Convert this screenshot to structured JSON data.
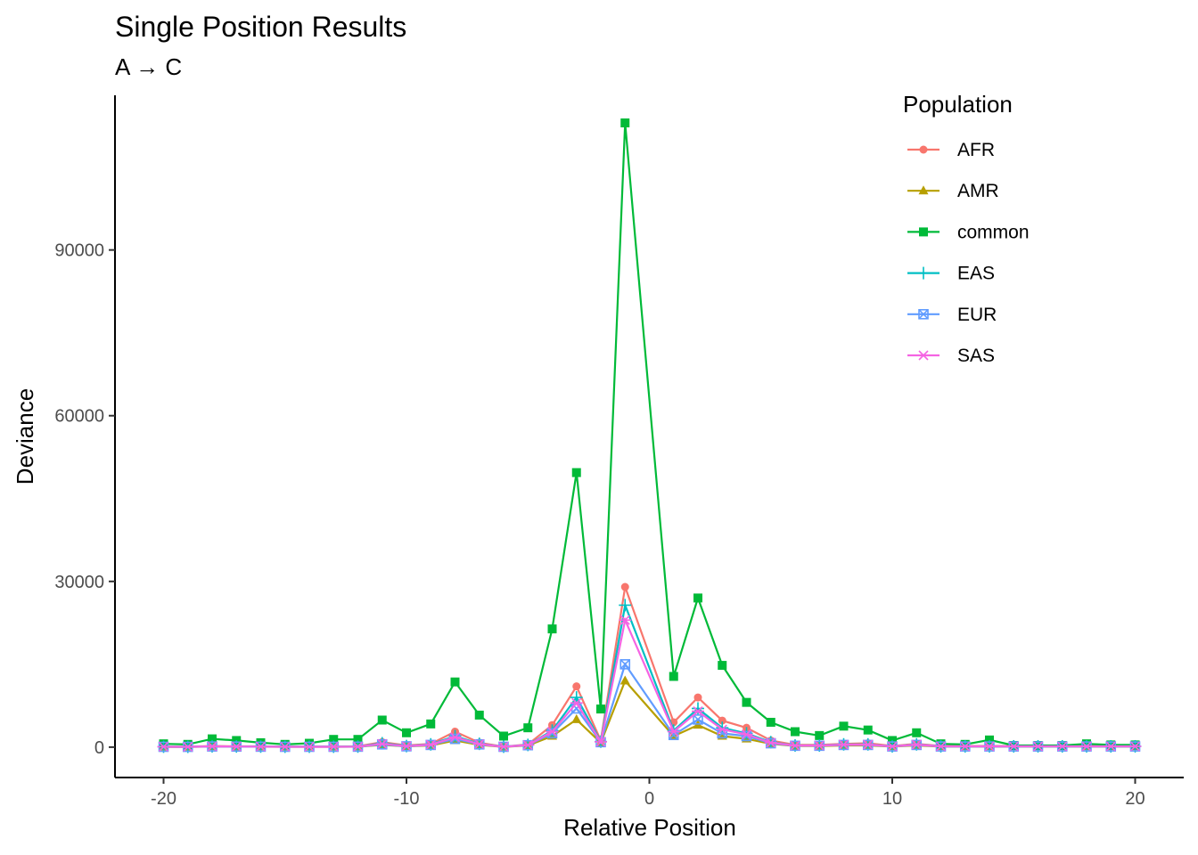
{
  "chart_data": {
    "type": "line",
    "title": "Single Position Results",
    "subtitle": "A → C",
    "xlabel": "Relative Position",
    "ylabel": "Deviance",
    "xlim": [
      -22,
      22
    ],
    "ylim": [
      -5500,
      118000
    ],
    "x_ticks": [
      -20,
      -10,
      0,
      10,
      20
    ],
    "x_tick_labels": [
      "-20",
      "-10",
      "0",
      "10",
      "20"
    ],
    "y_ticks": [
      0,
      30000,
      60000,
      90000
    ],
    "y_tick_labels": [
      "0",
      "30000",
      "60000",
      "90000"
    ],
    "grid": false,
    "legend": {
      "title": "Population",
      "placement": "top-right"
    },
    "x": [
      -20,
      -19,
      -18,
      -17,
      -16,
      -15,
      -14,
      -13,
      -12,
      -11,
      -10,
      -9,
      -8,
      -7,
      -6,
      -5,
      -4,
      -3,
      -2,
      -1,
      1,
      2,
      3,
      4,
      5,
      6,
      7,
      8,
      9,
      10,
      11,
      12,
      13,
      14,
      15,
      16,
      17,
      18,
      19,
      20
    ],
    "series": [
      {
        "name": "AFR",
        "color": "#F8766D",
        "marker": "circle",
        "values": [
          100,
          80,
          200,
          150,
          150,
          100,
          100,
          100,
          150,
          900,
          300,
          600,
          2800,
          800,
          100,
          500,
          4000,
          11000,
          1200,
          29000,
          4500,
          9000,
          4800,
          3500,
          1200,
          400,
          400,
          600,
          700,
          200,
          600,
          200,
          200,
          200,
          200,
          200,
          200,
          200,
          200,
          200
        ]
      },
      {
        "name": "AMR",
        "color": "#B79F00",
        "marker": "triangle",
        "values": [
          50,
          40,
          100,
          80,
          80,
          60,
          60,
          60,
          80,
          400,
          150,
          300,
          1200,
          400,
          50,
          300,
          2000,
          5000,
          800,
          12000,
          2000,
          4000,
          2000,
          1500,
          600,
          200,
          200,
          300,
          300,
          100,
          300,
          100,
          100,
          100,
          100,
          100,
          100,
          100,
          100,
          100
        ]
      },
      {
        "name": "common",
        "color": "#00BA38",
        "marker": "square",
        "values": [
          600,
          500,
          1500,
          1200,
          800,
          500,
          700,
          1400,
          1400,
          4900,
          2600,
          4200,
          11800,
          5800,
          2000,
          3500,
          21400,
          49700,
          6900,
          113000,
          12800,
          27000,
          14800,
          8100,
          4500,
          2800,
          2100,
          3800,
          3100,
          1200,
          2600,
          600,
          500,
          1300,
          300,
          300,
          300,
          600,
          400,
          400
        ]
      },
      {
        "name": "EAS",
        "color": "#00BFC4",
        "marker": "plus",
        "values": [
          80,
          60,
          150,
          120,
          100,
          80,
          80,
          80,
          100,
          700,
          200,
          500,
          2000,
          600,
          80,
          400,
          3000,
          9000,
          1000,
          25700,
          3000,
          7000,
          3500,
          2500,
          900,
          300,
          300,
          500,
          500,
          150,
          500,
          150,
          150,
          150,
          150,
          150,
          150,
          150,
          150,
          150
        ]
      },
      {
        "name": "EUR",
        "color": "#619CFF",
        "marker": "square-cross",
        "values": [
          60,
          50,
          120,
          100,
          80,
          60,
          60,
          60,
          80,
          500,
          150,
          400,
          1500,
          500,
          60,
          350,
          2500,
          7000,
          900,
          15000,
          2200,
          5000,
          2500,
          2000,
          700,
          250,
          250,
          400,
          400,
          120,
          400,
          120,
          120,
          120,
          120,
          120,
          120,
          120,
          120,
          120
        ]
      },
      {
        "name": "SAS",
        "color": "#F564E3",
        "marker": "asterisk",
        "values": [
          70,
          55,
          140,
          110,
          90,
          70,
          70,
          70,
          90,
          600,
          180,
          450,
          1800,
          550,
          70,
          380,
          2800,
          8000,
          950,
          23000,
          2800,
          6500,
          3200,
          2300,
          800,
          280,
          280,
          450,
          450,
          140,
          450,
          140,
          140,
          140,
          140,
          140,
          140,
          140,
          140,
          140
        ]
      }
    ]
  }
}
